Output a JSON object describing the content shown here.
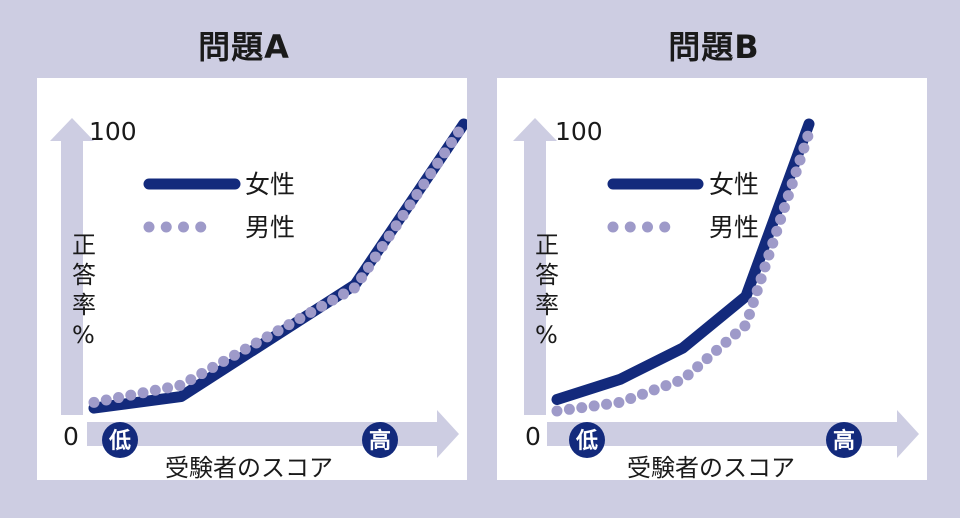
{
  "colors": {
    "background": "#cdcde2",
    "panel": "#ffffff",
    "female": "#132a7c",
    "male": "#9e9ac9",
    "axis_arrow": "#cdcde2",
    "badge": "#132a7c"
  },
  "chart_data": [
    {
      "type": "line",
      "title": "問題A",
      "xlabel": "受験者のスコア",
      "ylabel": "正答率%",
      "y_ticks": [
        "0",
        "100"
      ],
      "x_low_label": "低",
      "x_high_label": "高",
      "x": [
        0,
        1,
        3,
        4.25
      ],
      "ylim": [
        0,
        100
      ],
      "legend_position": "top-left",
      "series": [
        {
          "name": "女性",
          "style": "solid",
          "values": [
            1,
            5,
            44,
            100
          ]
        },
        {
          "name": "男性",
          "style": "dotted",
          "values": [
            3,
            9,
            43,
            100
          ]
        }
      ]
    },
    {
      "type": "line",
      "title": "問題B",
      "xlabel": "受験者のスコア",
      "ylabel": "正答率%",
      "y_ticks": [
        "0",
        "100"
      ],
      "x_low_label": "低",
      "x_high_label": "高",
      "x": [
        0,
        1,
        2,
        3,
        4
      ],
      "ylim": [
        0,
        100
      ],
      "legend_position": "top-left",
      "series": [
        {
          "name": "女性",
          "style": "solid",
          "values": [
            4,
            11,
            22,
            40,
            100
          ]
        },
        {
          "name": "男性",
          "style": "dotted",
          "values": [
            0,
            3,
            11,
            30,
            97
          ]
        }
      ]
    }
  ]
}
